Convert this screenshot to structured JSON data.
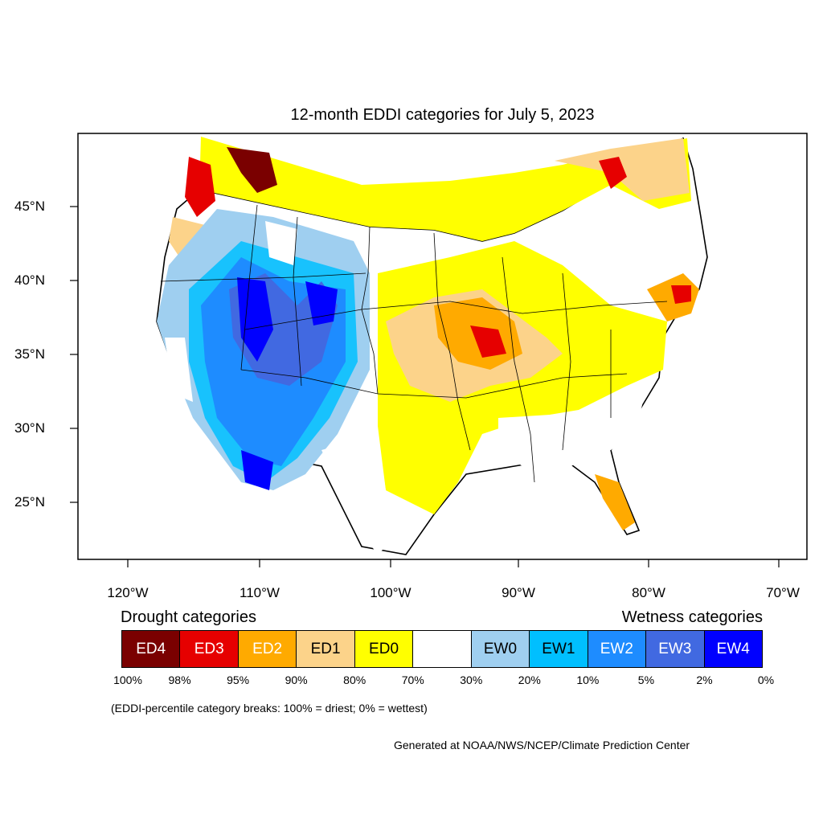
{
  "title": "12-month EDDI categories for July 5, 2023",
  "x_ticks": [
    "120°W",
    "110°W",
    "100°W",
    "90°W",
    "80°W",
    "70°W"
  ],
  "y_ticks": [
    "45°N",
    "40°N",
    "35°N",
    "30°N",
    "25°N"
  ],
  "legend": {
    "drought_label": "Drought categories",
    "wetness_label": "Wetness categories",
    "categories": [
      {
        "label": "ED4",
        "color": "#7a0000",
        "text_color": "#ffffff"
      },
      {
        "label": "ED3",
        "color": "#e60000",
        "text_color": "#ffffff"
      },
      {
        "label": "ED2",
        "color": "#ffaa00",
        "text_color": "#ffffff"
      },
      {
        "label": "ED1",
        "color": "#fcd38a",
        "text_color": "#000000"
      },
      {
        "label": "ED0",
        "color": "#ffff00",
        "text_color": "#000000"
      },
      {
        "label": "",
        "color": "#ffffff",
        "text_color": "#000000"
      },
      {
        "label": "EW0",
        "color": "#9fcff0",
        "text_color": "#000000"
      },
      {
        "label": "EW1",
        "color": "#00bfff",
        "text_color": "#000000"
      },
      {
        "label": "EW2",
        "color": "#1e8cff",
        "text_color": "#ffffff"
      },
      {
        "label": "EW3",
        "color": "#4169e1",
        "text_color": "#ffffff"
      },
      {
        "label": "EW4",
        "color": "#0000ff",
        "text_color": "#ffffff"
      }
    ],
    "breaks": [
      "100%",
      "98%",
      "95%",
      "90%",
      "80%",
      "70%",
      "30%",
      "20%",
      "10%",
      "5%",
      "2%",
      "0%"
    ]
  },
  "note": "(EDDI-percentile category breaks: 100% = driest; 0% = wettest)",
  "credit": "Generated at NOAA/NWS/NCEP/Climate Prediction Center"
}
